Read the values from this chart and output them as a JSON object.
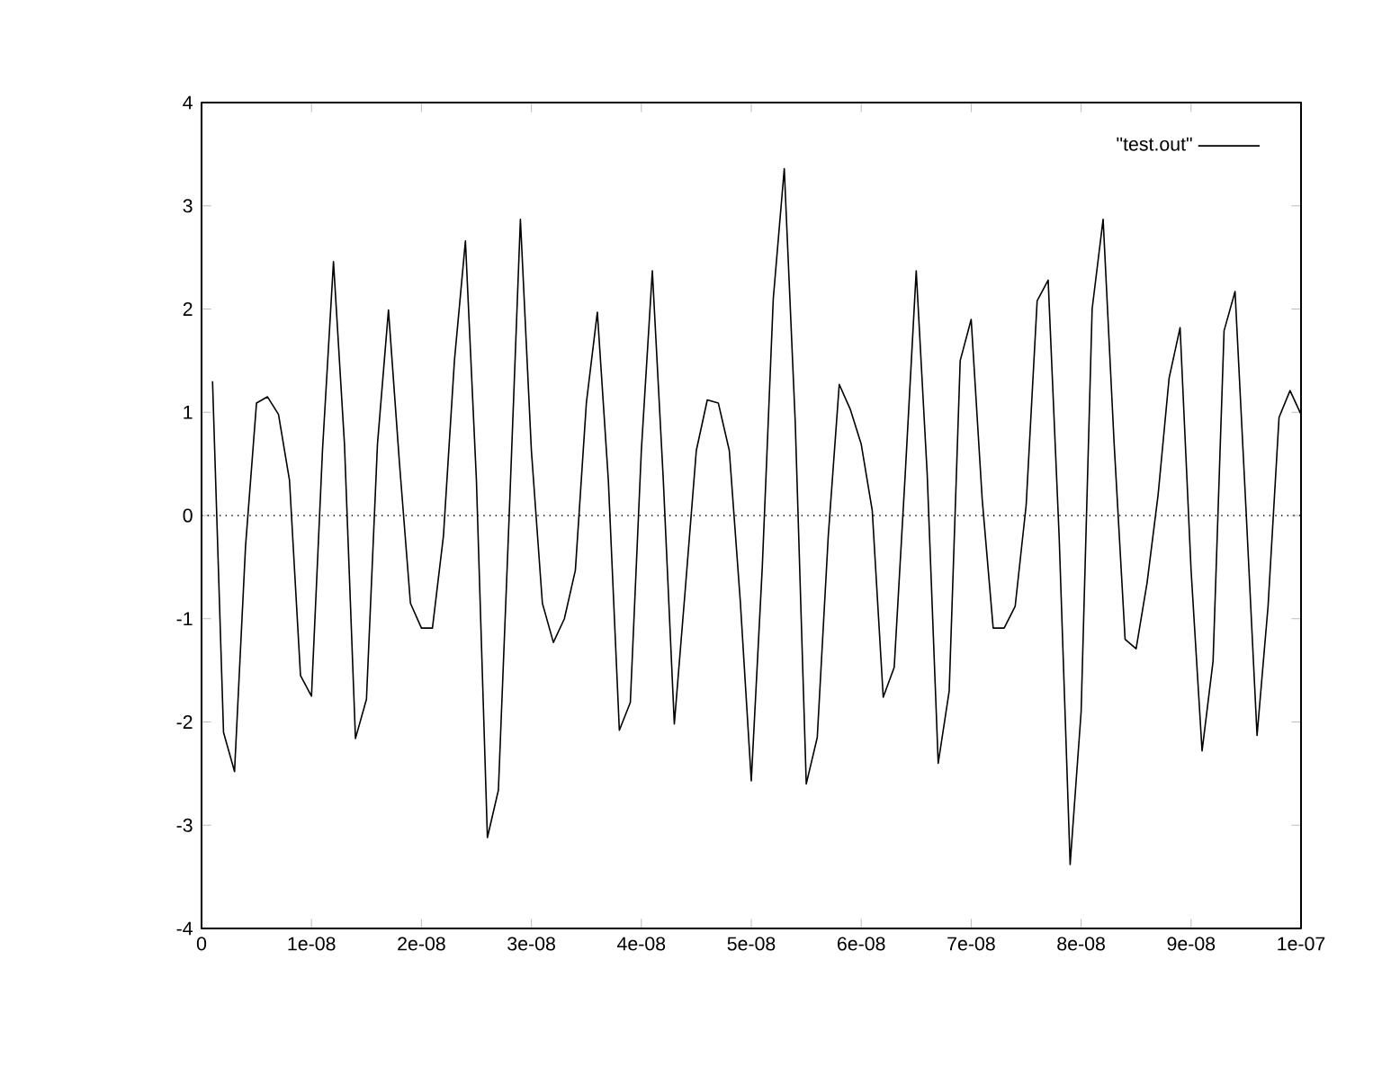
{
  "chart_data": {
    "type": "line",
    "x": [
      1e-09,
      2e-09,
      3e-09,
      4e-09,
      5e-09,
      6e-09,
      7e-09,
      8e-09,
      9e-09,
      1e-08,
      1.1e-08,
      1.2e-08,
      1.3e-08,
      1.4e-08,
      1.5e-08,
      1.6e-08,
      1.7e-08,
      1.8e-08,
      1.9e-08,
      2e-08,
      2.1e-08,
      2.2e-08,
      2.3e-08,
      2.4e-08,
      2.5e-08,
      2.6e-08,
      2.7e-08,
      2.8e-08,
      2.9e-08,
      3e-08,
      3.1e-08,
      3.2e-08,
      3.3e-08,
      3.4e-08,
      3.5e-08,
      3.6e-08,
      3.7e-08,
      3.8e-08,
      3.9e-08,
      4e-08,
      4.1e-08,
      4.2e-08,
      4.3e-08,
      4.4e-08,
      4.5e-08,
      4.6e-08,
      4.7e-08,
      4.8e-08,
      4.9e-08,
      5e-08,
      5.1e-08,
      5.2e-08,
      5.3e-08,
      5.4e-08,
      5.5e-08,
      5.6e-08,
      5.7e-08,
      5.8e-08,
      5.9e-08,
      6e-08,
      6.1e-08,
      6.2e-08,
      6.3e-08,
      6.4e-08,
      6.5e-08,
      6.6e-08,
      6.7e-08,
      6.8e-08,
      6.9e-08,
      7e-08,
      7.1e-08,
      7.2e-08,
      7.3e-08,
      7.4e-08,
      7.5e-08,
      7.6e-08,
      7.7e-08,
      7.8e-08,
      7.9e-08,
      8e-08,
      8.1e-08,
      8.2e-08,
      8.3e-08,
      8.4e-08,
      8.5e-08,
      8.6e-08,
      8.7e-08,
      8.8e-08,
      8.9e-08,
      9e-08,
      9.1e-08,
      9.2e-08,
      9.3e-08,
      9.4e-08,
      9.5e-08,
      9.6e-08,
      9.7e-08,
      9.8e-08,
      9.9e-08,
      1e-07
    ],
    "series": [
      {
        "name": "\"test.out\"",
        "color": "#000000",
        "values": [
          1.3,
          -2.1,
          -2.48,
          -0.3,
          1.09,
          1.15,
          0.98,
          0.34,
          -1.55,
          -1.75,
          0.63,
          2.46,
          0.69,
          -2.16,
          -1.78,
          0.69,
          1.99,
          0.51,
          -0.85,
          -1.09,
          -1.09,
          -0.2,
          1.5,
          2.66,
          0.34,
          -3.12,
          -2.66,
          0.05,
          2.87,
          0.63,
          -0.85,
          -1.23,
          -1.0,
          -0.53,
          1.09,
          1.97,
          0.34,
          -2.08,
          -1.81,
          0.63,
          2.37,
          0.34,
          -2.02,
          -0.71,
          0.63,
          1.12,
          1.09,
          0.63,
          -0.83,
          -2.57,
          -0.5,
          2.1,
          3.36,
          0.9,
          -2.6,
          -2.15,
          -0.2,
          1.27,
          1.03,
          0.69,
          0.05,
          -1.76,
          -1.47,
          0.4,
          2.37,
          0.4,
          -2.4,
          -1.7,
          1.5,
          1.9,
          0.16,
          -1.09,
          -1.09,
          -0.88,
          0.1,
          2.08,
          2.28,
          -0.2,
          -3.38,
          -1.9,
          2.0,
          2.87,
          0.7,
          -1.2,
          -1.29,
          -0.65,
          0.2,
          1.33,
          1.82,
          -0.53,
          -2.28,
          -1.41,
          1.79,
          2.17,
          0.05,
          -2.13,
          -0.88,
          0.95,
          1.21,
          0.98
        ]
      }
    ],
    "xlim": [
      0,
      1e-07
    ],
    "xticks": [
      0,
      {
        "value": 1e-08,
        "label": "1e-08"
      },
      {
        "value": 2e-08,
        "label": "2e-08"
      },
      {
        "value": 3e-08,
        "label": "3e-08"
      },
      {
        "value": 4e-08,
        "label": "4e-08"
      },
      {
        "value": 5e-08,
        "label": "5e-08"
      },
      {
        "value": 6e-08,
        "label": "6e-08"
      },
      {
        "value": 7e-08,
        "label": "7e-08"
      },
      {
        "value": 8e-08,
        "label": "8e-08"
      },
      {
        "value": 9e-08,
        "label": "9e-08"
      },
      {
        "value": 1e-07,
        "label": "1e-07"
      }
    ],
    "ylim": [
      -4,
      4
    ],
    "yticks": [
      -4,
      -3,
      -2,
      -1,
      0,
      1,
      2,
      3,
      4
    ],
    "ref_lines": [
      {
        "axis": "y",
        "value": 0,
        "line_style": "dotted"
      }
    ],
    "legend": "top right",
    "grid": false,
    "marker": "none",
    "line_style": "solid"
  }
}
